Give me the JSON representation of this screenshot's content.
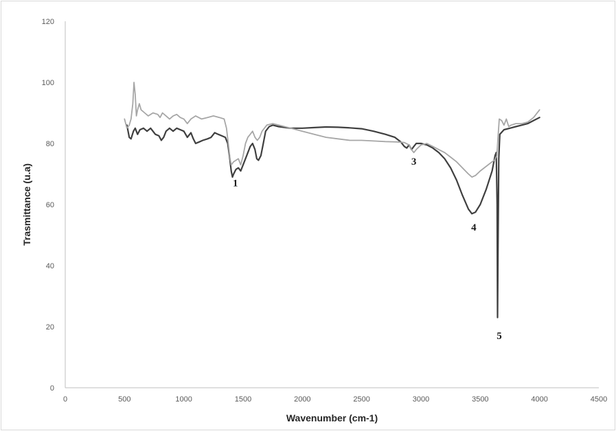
{
  "chart_data": {
    "type": "line",
    "title": "",
    "xlabel": "Wavenumber (cm-1)",
    "ylabel": "Trasmittance (u.a)",
    "xlim": [
      0,
      4500
    ],
    "ylim": [
      0,
      120
    ],
    "xticks": [
      0,
      500,
      1000,
      1500,
      2000,
      2500,
      3000,
      3500,
      4000,
      4500
    ],
    "yticks": [
      0,
      20,
      40,
      60,
      80,
      100,
      120
    ],
    "grid": false,
    "legend": "none",
    "series": [
      {
        "color": "#3f3f3f",
        "points": [
          [
            520,
            86
          ],
          [
            540,
            82
          ],
          [
            555,
            81.5
          ],
          [
            575,
            84
          ],
          [
            590,
            85
          ],
          [
            610,
            83
          ],
          [
            630,
            84.5
          ],
          [
            660,
            85
          ],
          [
            690,
            84
          ],
          [
            720,
            85
          ],
          [
            760,
            83
          ],
          [
            790,
            82.5
          ],
          [
            810,
            81
          ],
          [
            830,
            82
          ],
          [
            850,
            84
          ],
          [
            880,
            85
          ],
          [
            910,
            84
          ],
          [
            940,
            85
          ],
          [
            970,
            84.5
          ],
          [
            1000,
            84
          ],
          [
            1030,
            82
          ],
          [
            1060,
            83.5
          ],
          [
            1080,
            81.5
          ],
          [
            1100,
            80
          ],
          [
            1130,
            80.5
          ],
          [
            1160,
            81
          ],
          [
            1200,
            81.5
          ],
          [
            1230,
            82
          ],
          [
            1260,
            83.5
          ],
          [
            1290,
            83
          ],
          [
            1320,
            82.5
          ],
          [
            1350,
            82
          ],
          [
            1370,
            80
          ],
          [
            1385,
            76
          ],
          [
            1400,
            71
          ],
          [
            1410,
            69
          ],
          [
            1420,
            70
          ],
          [
            1440,
            71.5
          ],
          [
            1460,
            72
          ],
          [
            1480,
            71
          ],
          [
            1500,
            73
          ],
          [
            1530,
            76
          ],
          [
            1560,
            79
          ],
          [
            1580,
            80
          ],
          [
            1600,
            78
          ],
          [
            1615,
            75
          ],
          [
            1630,
            74.5
          ],
          [
            1650,
            76
          ],
          [
            1670,
            80
          ],
          [
            1690,
            84
          ],
          [
            1720,
            85.5
          ],
          [
            1750,
            86
          ],
          [
            1800,
            85.5
          ],
          [
            1900,
            85
          ],
          [
            2000,
            85
          ],
          [
            2100,
            85.2
          ],
          [
            2200,
            85.4
          ],
          [
            2300,
            85.3
          ],
          [
            2400,
            85.1
          ],
          [
            2500,
            84.8
          ],
          [
            2600,
            84
          ],
          [
            2700,
            83
          ],
          [
            2780,
            82
          ],
          [
            2830,
            80.5
          ],
          [
            2860,
            79
          ],
          [
            2880,
            78.5
          ],
          [
            2900,
            79.5
          ],
          [
            2920,
            78
          ],
          [
            2940,
            79
          ],
          [
            2960,
            80
          ],
          [
            3000,
            80
          ],
          [
            3050,
            79.5
          ],
          [
            3100,
            78.5
          ],
          [
            3150,
            77
          ],
          [
            3200,
            75
          ],
          [
            3250,
            72
          ],
          [
            3300,
            68
          ],
          [
            3350,
            63
          ],
          [
            3400,
            58.5
          ],
          [
            3430,
            57
          ],
          [
            3460,
            57.5
          ],
          [
            3500,
            60
          ],
          [
            3550,
            65
          ],
          [
            3600,
            71
          ],
          [
            3625,
            76
          ],
          [
            3635,
            77
          ],
          [
            3642,
            60
          ],
          [
            3646,
            23
          ],
          [
            3650,
            45
          ],
          [
            3656,
            75
          ],
          [
            3665,
            83
          ],
          [
            3700,
            84.5
          ],
          [
            3750,
            85
          ],
          [
            3800,
            85.5
          ],
          [
            3850,
            86
          ],
          [
            3900,
            86.5
          ],
          [
            3950,
            87.5
          ],
          [
            4000,
            88.5
          ]
        ]
      },
      {
        "color": "#a6a6a6",
        "points": [
          [
            500,
            88
          ],
          [
            520,
            85
          ],
          [
            540,
            86
          ],
          [
            555,
            88
          ],
          [
            570,
            93
          ],
          [
            580,
            100
          ],
          [
            590,
            96
          ],
          [
            600,
            89
          ],
          [
            610,
            91
          ],
          [
            625,
            93
          ],
          [
            640,
            91
          ],
          [
            670,
            90
          ],
          [
            700,
            89
          ],
          [
            740,
            90
          ],
          [
            780,
            89.5
          ],
          [
            800,
            88.5
          ],
          [
            820,
            90
          ],
          [
            850,
            89
          ],
          [
            880,
            88
          ],
          [
            910,
            89
          ],
          [
            940,
            89.5
          ],
          [
            970,
            88.5
          ],
          [
            1000,
            88
          ],
          [
            1030,
            86.5
          ],
          [
            1060,
            88
          ],
          [
            1100,
            89
          ],
          [
            1150,
            88
          ],
          [
            1200,
            88.5
          ],
          [
            1250,
            89
          ],
          [
            1300,
            88.5
          ],
          [
            1340,
            88
          ],
          [
            1360,
            85
          ],
          [
            1375,
            80
          ],
          [
            1390,
            75
          ],
          [
            1400,
            73
          ],
          [
            1420,
            74
          ],
          [
            1440,
            74.5
          ],
          [
            1460,
            75
          ],
          [
            1480,
            73
          ],
          [
            1500,
            76
          ],
          [
            1520,
            80
          ],
          [
            1540,
            82
          ],
          [
            1560,
            83
          ],
          [
            1580,
            84
          ],
          [
            1600,
            82
          ],
          [
            1620,
            81
          ],
          [
            1640,
            82
          ],
          [
            1660,
            84
          ],
          [
            1700,
            86
          ],
          [
            1750,
            86.5
          ],
          [
            1800,
            86
          ],
          [
            1900,
            85
          ],
          [
            2000,
            84
          ],
          [
            2100,
            83
          ],
          [
            2200,
            82
          ],
          [
            2300,
            81.5
          ],
          [
            2400,
            81
          ],
          [
            2500,
            81
          ],
          [
            2600,
            80.8
          ],
          [
            2700,
            80.6
          ],
          [
            2800,
            80.5
          ],
          [
            2860,
            80.3
          ],
          [
            2900,
            79.5
          ],
          [
            2920,
            78
          ],
          [
            2940,
            77
          ],
          [
            2960,
            78
          ],
          [
            3000,
            79.5
          ],
          [
            3050,
            80
          ],
          [
            3100,
            79
          ],
          [
            3150,
            78
          ],
          [
            3200,
            77
          ],
          [
            3250,
            75.5
          ],
          [
            3300,
            74
          ],
          [
            3350,
            72
          ],
          [
            3400,
            70
          ],
          [
            3430,
            69
          ],
          [
            3460,
            69.5
          ],
          [
            3500,
            71
          ],
          [
            3550,
            72.5
          ],
          [
            3600,
            74
          ],
          [
            3620,
            74.5
          ],
          [
            3640,
            76
          ],
          [
            3650,
            82
          ],
          [
            3660,
            88
          ],
          [
            3680,
            87.5
          ],
          [
            3700,
            86
          ],
          [
            3720,
            88
          ],
          [
            3740,
            85.5
          ],
          [
            3760,
            86
          ],
          [
            3800,
            86.5
          ],
          [
            3850,
            86.5
          ],
          [
            3900,
            87
          ],
          [
            3950,
            88.5
          ],
          [
            4000,
            91
          ]
        ]
      }
    ],
    "annotations": [
      {
        "text": "1",
        "x": 1435,
        "y": 66
      },
      {
        "text": "3",
        "x": 2940,
        "y": 73
      },
      {
        "text": "4",
        "x": 3445,
        "y": 51.5
      },
      {
        "text": "5",
        "x": 3660,
        "y": 16
      }
    ]
  }
}
